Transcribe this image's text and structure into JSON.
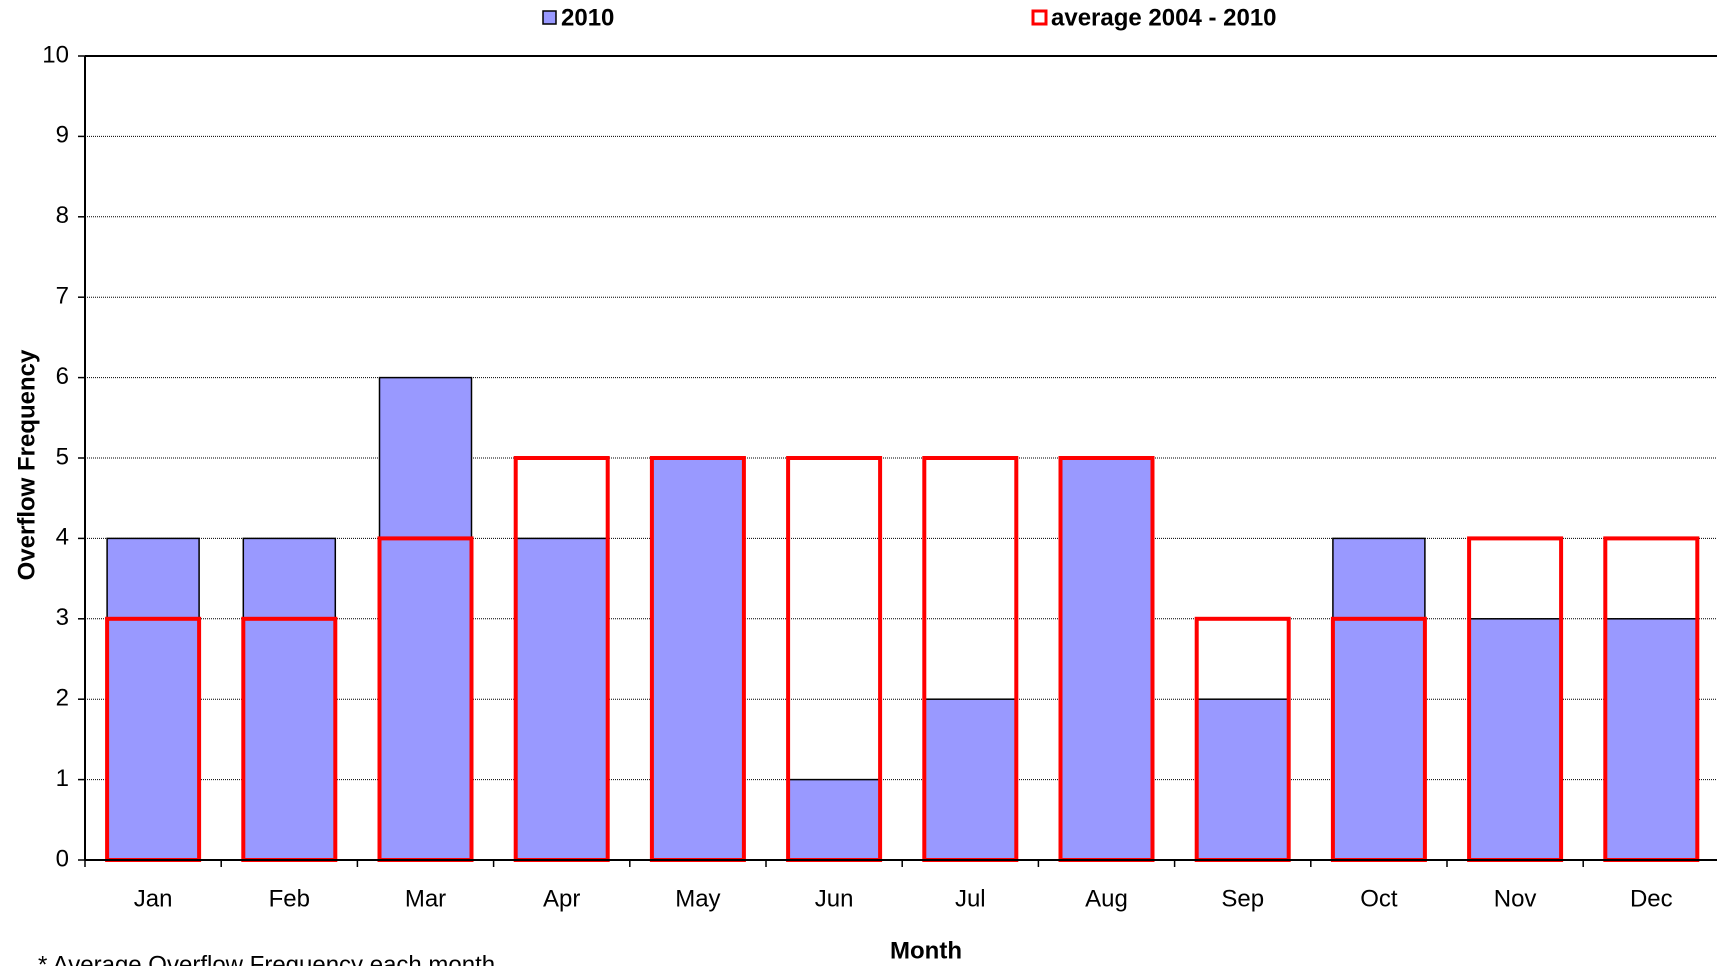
{
  "chart_data": {
    "type": "bar",
    "categories": [
      "Jan",
      "Feb",
      "Mar",
      "Apr",
      "May",
      "Jun",
      "Jul",
      "Aug",
      "Sep",
      "Oct",
      "Nov",
      "Dec"
    ],
    "series": [
      {
        "name": "2010",
        "color": "#9999ff",
        "values": [
          4,
          4,
          6,
          4,
          5,
          1,
          2,
          5,
          2,
          4,
          3,
          3
        ]
      },
      {
        "name": "average 2004 - 2010",
        "color": "#ff0000",
        "values": [
          3,
          3,
          4,
          5,
          5,
          5,
          5,
          5,
          3,
          3,
          4,
          4
        ]
      }
    ],
    "xlabel": "Month",
    "ylabel": "Overflow Frequency",
    "ylim": [
      0,
      10
    ],
    "yticks": [
      0,
      1,
      2,
      3,
      4,
      5,
      6,
      7,
      8,
      9,
      10
    ],
    "grid": true,
    "legend": "top",
    "footnote": "* Average Overflow Frequency each month"
  }
}
